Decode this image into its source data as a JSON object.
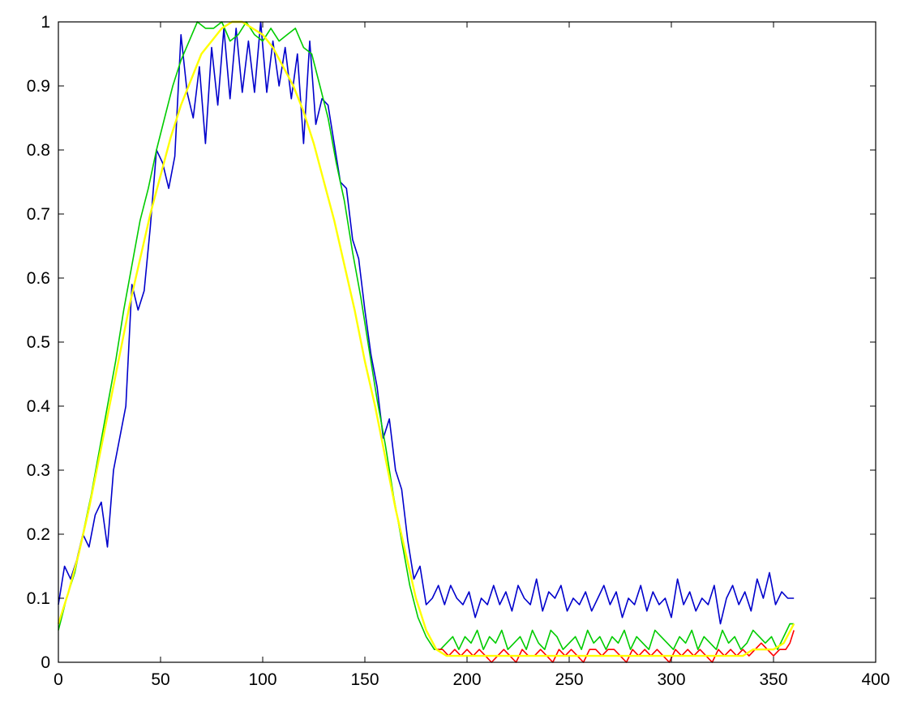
{
  "chart_data": {
    "type": "line",
    "title": "",
    "xlabel": "",
    "ylabel": "",
    "xlim": [
      0,
      400
    ],
    "ylim": [
      0,
      1
    ],
    "grid": false,
    "legend": "none",
    "x_ticks": [
      "0",
      "50",
      "100",
      "150",
      "200",
      "250",
      "300",
      "350",
      "400"
    ],
    "y_ticks": [
      "0",
      "0.1",
      "0.2",
      "0.3",
      "0.4",
      "0.5",
      "0.6",
      "0.7",
      "0.8",
      "0.9",
      "1"
    ],
    "series": [
      {
        "color": "#0000cc",
        "x": [
          0,
          3,
          6,
          9,
          12,
          15,
          18,
          21,
          24,
          27,
          30,
          33,
          36,
          39,
          42,
          45,
          48,
          51,
          54,
          57,
          60,
          63,
          66,
          69,
          72,
          75,
          78,
          81,
          84,
          87,
          90,
          93,
          96,
          99,
          102,
          105,
          108,
          111,
          114,
          117,
          120,
          123,
          126,
          129,
          132,
          135,
          138,
          141,
          144,
          147,
          150,
          153,
          156,
          159,
          162,
          165,
          168,
          171,
          174,
          177,
          180,
          183,
          186,
          189,
          192,
          195,
          198,
          201,
          204,
          207,
          210,
          213,
          216,
          219,
          222,
          225,
          228,
          231,
          234,
          237,
          240,
          243,
          246,
          249,
          252,
          255,
          258,
          261,
          264,
          267,
          270,
          273,
          276,
          279,
          282,
          285,
          288,
          291,
          294,
          297,
          300,
          303,
          306,
          309,
          312,
          315,
          318,
          321,
          324,
          327,
          330,
          333,
          336,
          339,
          342,
          345,
          348,
          351,
          354,
          357,
          360
        ],
        "values": [
          0.09,
          0.15,
          0.13,
          0.16,
          0.2,
          0.18,
          0.23,
          0.25,
          0.18,
          0.3,
          0.35,
          0.4,
          0.59,
          0.55,
          0.58,
          0.68,
          0.8,
          0.78,
          0.74,
          0.79,
          0.98,
          0.89,
          0.85,
          0.93,
          0.81,
          0.96,
          0.87,
          0.99,
          0.88,
          0.99,
          0.89,
          0.97,
          0.89,
          1.0,
          0.89,
          0.97,
          0.9,
          0.96,
          0.88,
          0.95,
          0.81,
          0.97,
          0.84,
          0.88,
          0.87,
          0.81,
          0.75,
          0.74,
          0.66,
          0.63,
          0.55,
          0.48,
          0.43,
          0.35,
          0.38,
          0.3,
          0.27,
          0.19,
          0.13,
          0.15,
          0.09,
          0.1,
          0.12,
          0.09,
          0.12,
          0.1,
          0.09,
          0.11,
          0.07,
          0.1,
          0.09,
          0.12,
          0.09,
          0.11,
          0.08,
          0.12,
          0.1,
          0.09,
          0.13,
          0.08,
          0.11,
          0.1,
          0.12,
          0.08,
          0.1,
          0.09,
          0.11,
          0.08,
          0.1,
          0.12,
          0.09,
          0.11,
          0.07,
          0.1,
          0.09,
          0.12,
          0.08,
          0.11,
          0.09,
          0.1,
          0.07,
          0.13,
          0.09,
          0.11,
          0.08,
          0.1,
          0.09,
          0.12,
          0.06,
          0.1,
          0.12,
          0.09,
          0.11,
          0.08,
          0.13,
          0.1,
          0.14,
          0.09,
          0.11,
          0.1,
          0.1
        ]
      },
      {
        "color": "#00cc00",
        "x": [
          0,
          4,
          8,
          12,
          16,
          20,
          24,
          28,
          32,
          36,
          40,
          44,
          48,
          52,
          56,
          60,
          64,
          68,
          72,
          76,
          80,
          84,
          88,
          92,
          96,
          100,
          104,
          108,
          112,
          116,
          120,
          124,
          128,
          132,
          136,
          140,
          144,
          148,
          152,
          156,
          160,
          164,
          168,
          172,
          176,
          180,
          184,
          187,
          190,
          193,
          196,
          199,
          202,
          205,
          208,
          211,
          214,
          217,
          220,
          223,
          226,
          229,
          232,
          235,
          238,
          241,
          244,
          247,
          250,
          253,
          256,
          259,
          262,
          265,
          268,
          271,
          274,
          277,
          280,
          283,
          286,
          289,
          292,
          295,
          298,
          301,
          304,
          307,
          310,
          313,
          316,
          319,
          322,
          325,
          328,
          331,
          334,
          337,
          340,
          343,
          346,
          349,
          352,
          355,
          358,
          360
        ],
        "values": [
          0.05,
          0.1,
          0.14,
          0.2,
          0.26,
          0.33,
          0.4,
          0.47,
          0.55,
          0.62,
          0.69,
          0.74,
          0.8,
          0.85,
          0.9,
          0.94,
          0.97,
          1.0,
          0.99,
          0.99,
          1.0,
          0.97,
          0.98,
          1.0,
          0.98,
          0.97,
          0.99,
          0.97,
          0.98,
          0.99,
          0.96,
          0.95,
          0.9,
          0.85,
          0.78,
          0.72,
          0.64,
          0.57,
          0.49,
          0.41,
          0.34,
          0.26,
          0.19,
          0.12,
          0.07,
          0.04,
          0.02,
          0.02,
          0.03,
          0.04,
          0.02,
          0.04,
          0.03,
          0.05,
          0.02,
          0.04,
          0.03,
          0.05,
          0.02,
          0.03,
          0.04,
          0.02,
          0.05,
          0.03,
          0.02,
          0.05,
          0.04,
          0.02,
          0.03,
          0.04,
          0.02,
          0.05,
          0.03,
          0.04,
          0.02,
          0.04,
          0.03,
          0.05,
          0.02,
          0.04,
          0.03,
          0.02,
          0.05,
          0.04,
          0.03,
          0.02,
          0.04,
          0.03,
          0.05,
          0.02,
          0.04,
          0.03,
          0.02,
          0.05,
          0.03,
          0.04,
          0.02,
          0.03,
          0.05,
          0.04,
          0.03,
          0.04,
          0.02,
          0.04,
          0.06,
          0.06
        ]
      },
      {
        "color": "#ff0000",
        "x": [
          0,
          5,
          10,
          15,
          20,
          25,
          30,
          35,
          40,
          45,
          50,
          55,
          60,
          65,
          70,
          75,
          80,
          85,
          90,
          95,
          100,
          105,
          110,
          115,
          120,
          125,
          130,
          135,
          140,
          145,
          150,
          155,
          160,
          165,
          170,
          175,
          180,
          185,
          188,
          191,
          194,
          197,
          200,
          203,
          206,
          209,
          212,
          215,
          218,
          221,
          224,
          227,
          230,
          233,
          236,
          239,
          242,
          245,
          248,
          251,
          254,
          257,
          260,
          263,
          266,
          269,
          272,
          275,
          278,
          281,
          284,
          287,
          290,
          293,
          296,
          299,
          302,
          305,
          308,
          311,
          314,
          317,
          320,
          323,
          326,
          329,
          332,
          335,
          338,
          341,
          344,
          347,
          350,
          353,
          356,
          358,
          360
        ],
        "values": [
          0.06,
          0.11,
          0.17,
          0.24,
          0.32,
          0.4,
          0.48,
          0.56,
          0.63,
          0.7,
          0.76,
          0.82,
          0.87,
          0.91,
          0.95,
          0.97,
          0.99,
          1.0,
          1.0,
          0.99,
          0.98,
          0.96,
          0.93,
          0.9,
          0.86,
          0.81,
          0.75,
          0.69,
          0.62,
          0.55,
          0.47,
          0.4,
          0.32,
          0.24,
          0.17,
          0.1,
          0.05,
          0.02,
          0.02,
          0.01,
          0.02,
          0.01,
          0.02,
          0.01,
          0.02,
          0.01,
          0.0,
          0.01,
          0.02,
          0.01,
          0.0,
          0.02,
          0.01,
          0.01,
          0.02,
          0.01,
          0.0,
          0.02,
          0.01,
          0.02,
          0.01,
          0.0,
          0.02,
          0.02,
          0.01,
          0.02,
          0.02,
          0.01,
          0.0,
          0.02,
          0.01,
          0.02,
          0.01,
          0.02,
          0.01,
          0.0,
          0.02,
          0.01,
          0.02,
          0.01,
          0.02,
          0.01,
          0.0,
          0.02,
          0.01,
          0.02,
          0.01,
          0.02,
          0.01,
          0.02,
          0.03,
          0.02,
          0.01,
          0.02,
          0.02,
          0.03,
          0.05
        ]
      },
      {
        "color": "#ffff00",
        "x": [
          0,
          5,
          10,
          15,
          20,
          25,
          30,
          35,
          40,
          45,
          50,
          55,
          60,
          65,
          70,
          75,
          80,
          85,
          90,
          95,
          100,
          105,
          110,
          115,
          120,
          125,
          130,
          135,
          140,
          145,
          150,
          155,
          160,
          165,
          170,
          175,
          180,
          185,
          190,
          195,
          200,
          205,
          210,
          215,
          220,
          225,
          230,
          235,
          240,
          245,
          250,
          255,
          260,
          265,
          270,
          275,
          280,
          285,
          290,
          295,
          300,
          305,
          310,
          315,
          320,
          325,
          330,
          335,
          340,
          345,
          350,
          355,
          360
        ],
        "values": [
          0.06,
          0.11,
          0.17,
          0.24,
          0.32,
          0.4,
          0.48,
          0.56,
          0.63,
          0.7,
          0.76,
          0.82,
          0.87,
          0.91,
          0.95,
          0.97,
          0.99,
          1.0,
          1.0,
          0.99,
          0.98,
          0.96,
          0.93,
          0.9,
          0.86,
          0.81,
          0.75,
          0.69,
          0.62,
          0.55,
          0.47,
          0.4,
          0.32,
          0.24,
          0.17,
          0.1,
          0.05,
          0.02,
          0.01,
          0.01,
          0.01,
          0.01,
          0.01,
          0.01,
          0.01,
          0.01,
          0.01,
          0.01,
          0.01,
          0.01,
          0.01,
          0.01,
          0.01,
          0.01,
          0.01,
          0.01,
          0.01,
          0.01,
          0.01,
          0.01,
          0.01,
          0.01,
          0.01,
          0.01,
          0.01,
          0.01,
          0.01,
          0.01,
          0.02,
          0.02,
          0.02,
          0.03,
          0.06
        ]
      }
    ]
  }
}
